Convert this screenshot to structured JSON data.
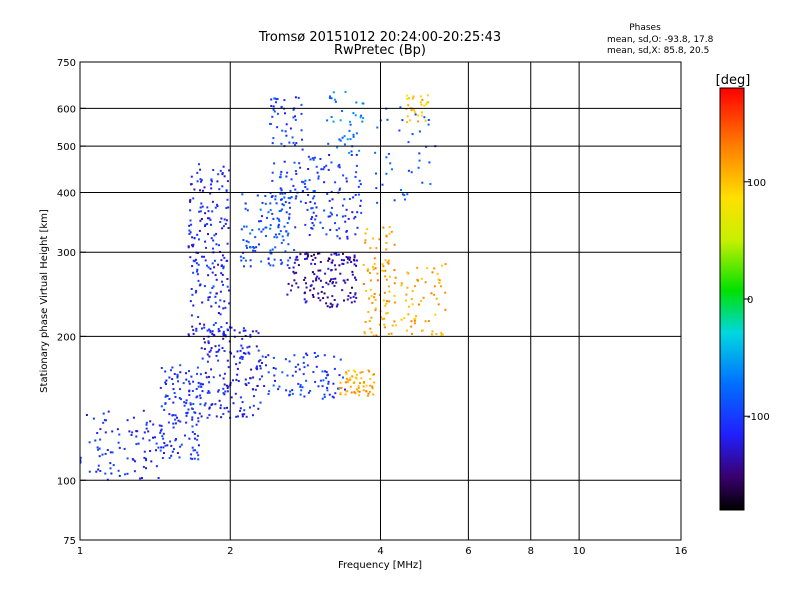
{
  "header": {
    "title_line1": "Tromsø 20151012 20:24:00-20:25:43",
    "title_line2": "RwPretec (Bp)",
    "stats_title": "Phases",
    "stats_o": "mean, sd,O: -93.8, 17.8",
    "stats_x": "mean, sd,X:  85.8, 20.5"
  },
  "colorbar": {
    "label": "[deg]",
    "ticks": [
      {
        "value": 100,
        "label": "100"
      },
      {
        "value": 0,
        "label": "0"
      },
      {
        "value": -100,
        "label": "-100"
      }
    ],
    "range": [
      -180,
      180
    ]
  },
  "chart_data": {
    "type": "scatter",
    "xlabel": "Frequency [MHz]",
    "ylabel": "Stationary phase Virtual Height [km]",
    "x_scale": "log",
    "y_scale": "log",
    "xlim": [
      1,
      16
    ],
    "ylim": [
      75,
      750
    ],
    "grid": true,
    "x_ticks": [
      {
        "value": 1,
        "label": "1"
      },
      {
        "value": 2,
        "label": "2"
      },
      {
        "value": 4,
        "label": "4"
      },
      {
        "value": 6,
        "label": "6"
      },
      {
        "value": 8,
        "label": "8"
      },
      {
        "value": 10,
        "label": "10"
      },
      {
        "value": 16,
        "label": "16"
      }
    ],
    "y_ticks": [
      {
        "value": 75,
        "label": "75"
      },
      {
        "value": 100,
        "label": "100"
      },
      {
        "value": 200,
        "label": "200"
      },
      {
        "value": 300,
        "label": "300"
      },
      {
        "value": 400,
        "label": "400"
      },
      {
        "value": 500,
        "label": "500"
      },
      {
        "value": 600,
        "label": "600"
      },
      {
        "value": 750,
        "label": "750"
      }
    ],
    "x_grid": [
      2,
      4,
      6,
      8,
      10
    ],
    "y_grid": [
      100,
      200,
      300,
      400,
      500,
      600
    ],
    "clusters": [
      {
        "x": [
          1.0,
          1.45
        ],
        "y": [
          100,
          140
        ],
        "phase": -110,
        "count": 90
      },
      {
        "x": [
          1.45,
          1.75
        ],
        "y": [
          110,
          175
        ],
        "phase": -105,
        "count": 140
      },
      {
        "x": [
          1.65,
          2.0
        ],
        "y": [
          200,
          460
        ],
        "phase": -110,
        "count": 200
      },
      {
        "x": [
          1.75,
          2.3
        ],
        "y": [
          135,
          210
        ],
        "phase": -115,
        "count": 170
      },
      {
        "x": [
          2.1,
          2.7
        ],
        "y": [
          280,
          400
        ],
        "phase": -90,
        "count": 120
      },
      {
        "x": [
          2.4,
          2.8
        ],
        "y": [
          380,
          640
        ],
        "phase": -100,
        "count": 80
      },
      {
        "x": [
          2.6,
          3.6
        ],
        "y": [
          230,
          300
        ],
        "phase": -135,
        "count": 150
      },
      {
        "x": [
          2.3,
          3.4
        ],
        "y": [
          148,
          185
        ],
        "phase": -100,
        "count": 90
      },
      {
        "x": [
          2.8,
          3.7
        ],
        "y": [
          320,
          480
        ],
        "phase": -105,
        "count": 110
      },
      {
        "x": [
          3.1,
          3.7
        ],
        "y": [
          480,
          650
        ],
        "phase": -70,
        "count": 40
      },
      {
        "x": [
          3.3,
          3.9
        ],
        "y": [
          150,
          170
        ],
        "phase": 110,
        "count": 60
      },
      {
        "x": [
          3.7,
          4.3
        ],
        "y": [
          200,
          340
        ],
        "phase": 115,
        "count": 90
      },
      {
        "x": [
          4.4,
          5.4
        ],
        "y": [
          200,
          290
        ],
        "phase": 110,
        "count": 60
      },
      {
        "x": [
          4.5,
          5.0
        ],
        "y": [
          560,
          640
        ],
        "phase": 100,
        "count": 30
      },
      {
        "x": [
          3.9,
          5.2
        ],
        "y": [
          380,
          620
        ],
        "phase": -85,
        "count": 40
      }
    ]
  }
}
